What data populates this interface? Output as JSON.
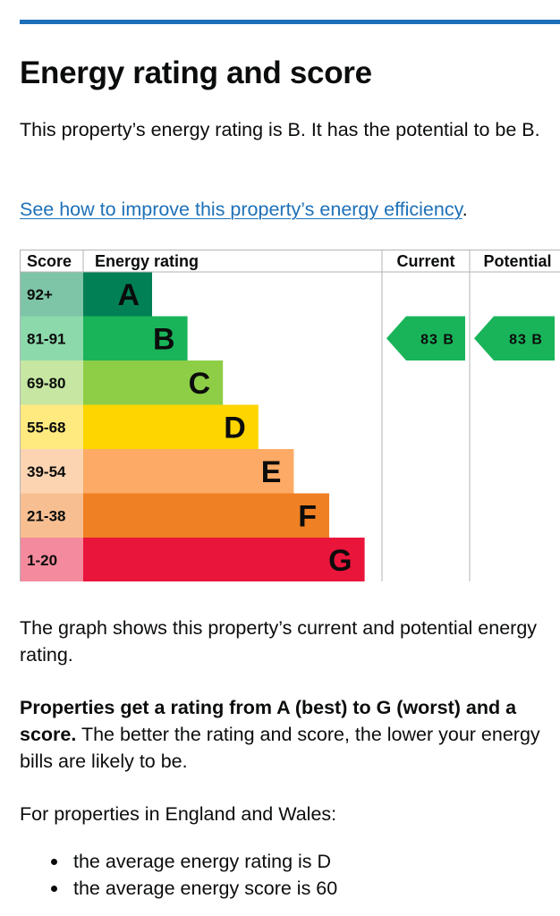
{
  "heading": "Energy rating and score",
  "intro": "This property’s energy rating is B. It has the potential to be B.",
  "improve_link": "See how to improve this property’s energy efficiency",
  "improve_link_suffix": ".",
  "chart_data": {
    "type": "table",
    "headers": {
      "score": "Score",
      "rating": "Energy rating",
      "current": "Current",
      "potential": "Potential"
    },
    "bands": [
      {
        "score": "92+",
        "letter": "A",
        "color": "#008054",
        "light": "#7ec4a7"
      },
      {
        "score": "81-91",
        "letter": "B",
        "color": "#19b459",
        "light": "#8cd9ac"
      },
      {
        "score": "69-80",
        "letter": "C",
        "color": "#8dce46",
        "light": "#c6e6a2"
      },
      {
        "score": "55-68",
        "letter": "D",
        "color": "#ffd500",
        "light": "#ffea80"
      },
      {
        "score": "39-54",
        "letter": "E",
        "color": "#fcaa65",
        "light": "#fdd4b2"
      },
      {
        "score": "21-38",
        "letter": "F",
        "color": "#ef8023",
        "light": "#f7bf91"
      },
      {
        "score": "1-20",
        "letter": "G",
        "color": "#e9153b",
        "light": "#f48a9d"
      }
    ],
    "current": {
      "score": 83,
      "letter": "B",
      "label": "83 B",
      "band_index": 1
    },
    "potential": {
      "score": 83,
      "letter": "B",
      "label": "83 B",
      "band_index": 1
    }
  },
  "graph_text": "The graph shows this property’s current and potential energy rating.",
  "rating_para_bold": "Properties get a rating from A (best) to G (worst) and a score.",
  "rating_para_rest": " The better the rating and score, the lower your energy bills are likely to be.",
  "england_text": "For properties in England and Wales:",
  "averages": [
    "the average energy rating is D",
    "the average energy score is 60"
  ]
}
